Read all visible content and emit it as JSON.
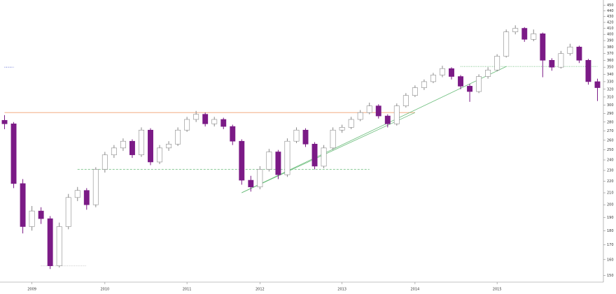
{
  "chart_data": {
    "type": "candlestick",
    "log_scale": true,
    "ylim": [
      146,
      460
    ],
    "yticks": [
      150,
      160,
      170,
      180,
      190,
      200,
      210,
      220,
      230,
      240,
      250,
      260,
      270,
      280,
      290,
      300,
      310,
      320,
      330,
      340,
      350,
      360,
      370,
      380,
      390,
      400,
      410,
      420,
      430,
      440,
      450
    ],
    "up_color": "#ffffff",
    "down_color": "#7b1a86",
    "categories": [
      null,
      null,
      null,
      "2009",
      null,
      null,
      null,
      null,
      null,
      null,
      null,
      "2010",
      null,
      null,
      null,
      null,
      null,
      null,
      null,
      null,
      "2011",
      null,
      null,
      null,
      null,
      null,
      null,
      null,
      "2012",
      null,
      null,
      null,
      null,
      null,
      null,
      null,
      null,
      "2013",
      null,
      null,
      null,
      null,
      null,
      null,
      null,
      "2014",
      null,
      null,
      null,
      null,
      null,
      null,
      null,
      null,
      "2015",
      null,
      null,
      null,
      null,
      null,
      null,
      null,
      null,
      null,
      null,
      null
    ],
    "open": [
      282,
      278,
      218,
      183,
      195,
      189,
      156,
      183,
      206,
      212,
      200,
      231,
      245,
      252,
      259,
      245,
      271,
      238,
      252,
      256,
      271,
      283,
      289,
      278,
      283,
      275,
      259,
      221,
      215,
      231,
      248,
      226,
      259,
      271,
      256,
      234,
      252,
      271,
      274,
      283,
      291,
      299,
      287,
      278,
      299,
      312,
      322,
      330,
      339,
      348,
      337,
      324,
      317,
      337,
      346,
      366,
      404,
      410,
      392,
      401,
      360,
      350,
      370,
      380,
      360,
      330
    ],
    "high": [
      288,
      280,
      222,
      199,
      198,
      191,
      186,
      209,
      215,
      214,
      233,
      248,
      255,
      262,
      261,
      274,
      273,
      255,
      259,
      274,
      286,
      293,
      291,
      286,
      285,
      277,
      261,
      225,
      234,
      251,
      250,
      262,
      274,
      273,
      258,
      255,
      274,
      277,
      286,
      294,
      303,
      301,
      289,
      302,
      315,
      325,
      333,
      342,
      352,
      350,
      339,
      327,
      340,
      350,
      369,
      408,
      415,
      412,
      408,
      403,
      363,
      374,
      385,
      382,
      362,
      334
    ],
    "low": [
      272,
      214,
      178,
      180,
      185,
      154,
      155,
      181,
      203,
      196,
      198,
      228,
      242,
      249,
      242,
      243,
      235,
      236,
      249,
      254,
      269,
      280,
      275,
      275,
      272,
      255,
      217,
      211,
      213,
      229,
      222,
      224,
      257,
      253,
      231,
      232,
      250,
      268,
      272,
      281,
      289,
      284,
      274,
      276,
      297,
      310,
      319,
      328,
      336,
      333,
      320,
      304,
      315,
      334,
      344,
      364,
      400,
      388,
      389,
      336,
      345,
      348,
      367,
      356,
      326,
      305
    ],
    "close": [
      278,
      218,
      183,
      195,
      189,
      156,
      183,
      206,
      212,
      200,
      231,
      245,
      252,
      259,
      245,
      271,
      238,
      252,
      256,
      271,
      283,
      289,
      278,
      283,
      275,
      259,
      221,
      215,
      231,
      248,
      226,
      259,
      271,
      256,
      234,
      252,
      271,
      274,
      283,
      291,
      299,
      287,
      278,
      299,
      312,
      322,
      330,
      339,
      348,
      337,
      324,
      317,
      337,
      346,
      366,
      404,
      410,
      392,
      401,
      360,
      350,
      370,
      380,
      360,
      330,
      322
    ],
    "levels": [
      {
        "value": 291,
        "from": 0,
        "to": 45,
        "color": "#f0a070",
        "style": "solid"
      },
      {
        "value": 231,
        "from": 8,
        "to": 40,
        "color": "#66bb77",
        "style": "dashed"
      },
      {
        "value": 351,
        "from": 50,
        "to": 65,
        "color": "#66bb77",
        "style": "dotted"
      },
      {
        "value": 350,
        "from": 0,
        "to": 1,
        "color": "#4455cc",
        "style": "dotted"
      },
      {
        "value": 156,
        "from": 4,
        "to": 9,
        "color": "#bbbbbb",
        "style": "dotted"
      }
    ],
    "trendlines": [
      {
        "from": [
          26,
          210
        ],
        "to": [
          45,
          291
        ],
        "color": "#66bb77"
      },
      {
        "from": [
          26,
          210
        ],
        "to": [
          55,
          351
        ],
        "color": "#66bb77"
      }
    ]
  }
}
